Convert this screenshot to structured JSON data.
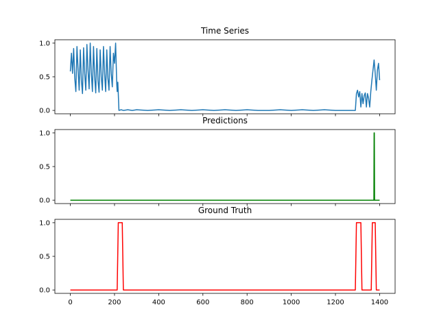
{
  "chart_data": [
    {
      "type": "line",
      "title": "Time Series",
      "xlabel": "",
      "ylabel": "",
      "xlim": [
        -70,
        1470
      ],
      "ylim": [
        -0.05,
        1.05
      ],
      "yticks": [
        0.0,
        0.5,
        1.0
      ],
      "ytick_labels": [
        "0.0",
        "0.5",
        "1.0"
      ],
      "xticks": [
        0,
        200,
        400,
        600,
        800,
        1000,
        1200,
        1400
      ],
      "xtick_labels": [],
      "grid": false,
      "series": [
        {
          "color": "#1f77b4",
          "x": [
            0,
            5,
            10,
            15,
            20,
            25,
            30,
            35,
            40,
            45,
            50,
            55,
            60,
            65,
            70,
            75,
            80,
            85,
            90,
            95,
            100,
            105,
            110,
            115,
            120,
            125,
            130,
            135,
            140,
            145,
            150,
            155,
            160,
            165,
            170,
            175,
            180,
            185,
            190,
            195,
            200,
            205,
            210,
            212,
            215,
            220,
            230,
            240,
            260,
            280,
            300,
            350,
            400,
            450,
            500,
            550,
            600,
            650,
            700,
            750,
            800,
            850,
            900,
            950,
            1000,
            1050,
            1100,
            1150,
            1200,
            1250,
            1290,
            1295,
            1300,
            1305,
            1310,
            1315,
            1320,
            1325,
            1330,
            1335,
            1340,
            1345,
            1350,
            1355,
            1360,
            1365,
            1370,
            1375,
            1380,
            1385,
            1390,
            1395,
            1400
          ],
          "values": [
            0.58,
            0.85,
            0.55,
            0.92,
            0.48,
            0.28,
            0.95,
            0.6,
            0.3,
            0.9,
            0.45,
            0.25,
            0.93,
            0.55,
            0.3,
            0.98,
            0.6,
            0.32,
            1.0,
            0.55,
            0.28,
            0.95,
            0.5,
            0.26,
            0.92,
            0.45,
            0.27,
            0.9,
            0.5,
            0.3,
            0.95,
            0.55,
            0.28,
            0.9,
            0.48,
            0.3,
            0.95,
            0.55,
            0.35,
            0.85,
            0.7,
            1.0,
            0.4,
            0.28,
            0.42,
            0.0,
            0.01,
            0.0,
            0.01,
            0.0,
            0.01,
            0.0,
            0.01,
            0.0,
            0.01,
            0.0,
            0.01,
            0.0,
            0.01,
            0.0,
            0.01,
            0.0,
            0.0,
            0.01,
            0.0,
            0.01,
            0.0,
            0.01,
            0.0,
            0.0,
            0.0,
            0.25,
            0.3,
            0.2,
            0.28,
            0.05,
            0.25,
            0.1,
            0.22,
            0.26,
            0.05,
            0.25,
            0.18,
            0.05,
            0.28,
            0.45,
            0.6,
            0.75,
            0.55,
            0.3,
            0.6,
            0.7,
            0.45
          ]
        }
      ]
    },
    {
      "type": "line",
      "title": "Predictions",
      "xlabel": "",
      "ylabel": "",
      "xlim": [
        -70,
        1470
      ],
      "ylim": [
        -0.05,
        1.05
      ],
      "yticks": [
        0.0,
        0.5,
        1.0
      ],
      "ytick_labels": [
        "0.0",
        "0.5",
        "1.0"
      ],
      "xticks": [
        0,
        200,
        400,
        600,
        800,
        1000,
        1200,
        1400
      ],
      "xtick_labels": [],
      "grid": false,
      "series": [
        {
          "color": "#008000",
          "x": [
            0,
            1374,
            1375,
            1376,
            1377,
            1400
          ],
          "values": [
            0,
            0,
            1,
            1,
            0,
            0
          ]
        }
      ]
    },
    {
      "type": "line",
      "title": "Ground Truth",
      "xlabel": "",
      "ylabel": "",
      "xlim": [
        -70,
        1470
      ],
      "ylim": [
        -0.05,
        1.05
      ],
      "yticks": [
        0.0,
        0.5,
        1.0
      ],
      "ytick_labels": [
        "0.0",
        "0.5",
        "1.0"
      ],
      "xticks": [
        0,
        200,
        400,
        600,
        800,
        1000,
        1200,
        1400
      ],
      "xtick_labels": [
        "0",
        "200",
        "400",
        "600",
        "800",
        "1000",
        "1200",
        "1400"
      ],
      "grid": false,
      "series": [
        {
          "color": "#ff0000",
          "x": [
            0,
            212,
            217,
            235,
            240,
            1290,
            1295,
            1315,
            1320,
            1362,
            1367,
            1380,
            1385,
            1400
          ],
          "values": [
            0,
            0,
            1,
            1,
            0,
            0,
            1,
            1,
            0,
            0,
            1,
            1,
            0,
            0
          ]
        }
      ]
    }
  ]
}
